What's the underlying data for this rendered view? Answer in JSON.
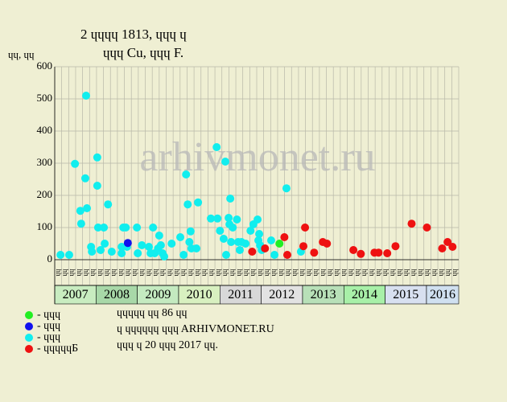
{
  "chart_data": {
    "type": "scatter",
    "title": "2 ɥɥɥɥ 1813, ɥɥɥ ɥ",
    "subtitle": "ɥɥɥ Cu, ɥɥɥ F.",
    "y_label": "ɥɥ, ɥɥ",
    "watermark": "arhivmonet.ru",
    "notes": [
      "ɥɥɥɥɥ ɥɥ 86 ɥɥ",
      "ɥ ɥɥɥɥɥɥ ɥɥɥ ARHIVMONET.RU",
      "ɥɥɥ ɥ 20 ɥɥɥ 2017 ɥɥ."
    ],
    "xlim": [
      2007,
      2016.78
    ],
    "xticks": [
      2007,
      2008,
      2009,
      2010,
      2011,
      2012,
      2013,
      2014,
      2015,
      2016
    ],
    "xtick_colors": [
      "#c8ecc0",
      "#a8d8a8",
      "#c4eac0",
      "#d8f0c0",
      "#d8d8d8",
      "#e2e2e2",
      "#b8e0b8",
      "#a8f0a8",
      "#d8e0f0",
      "#d0e0f0"
    ],
    "period_labels": [
      "ɥɥ",
      "ɥɥ",
      "ɥɥ",
      "ɥɥ",
      "ɥɥ",
      "ɥɥ",
      "ɥɥ",
      "ɥɥ",
      "ɥɥ",
      "ɥɥ",
      "ɥɥ",
      "ɥɥ",
      "ɥɥ",
      "ɥɥ",
      "ɥɥ",
      "ɥɥ",
      "ɥɥ",
      "ɥɥ",
      "ɥɥ",
      "ɥɥ",
      "ɥɥ",
      "ɥɥ",
      "ɥɥ",
      "ɥɥ",
      "ɥɥ",
      "ɥɥ",
      "ɥɥ",
      "ɥɥ",
      "ɥɥ",
      "ɥɥ",
      "ɥɥ",
      "ɥɥ",
      "ɥɥ",
      "ɥɥ",
      "ɥɥ",
      "ɥɥ",
      "ɥɥ",
      "ɥɥ",
      "ɥɥ",
      "ɥɥ",
      "ɥɥ",
      "ɥɥ",
      "ɥɥ",
      "ɥɥ",
      "ɥɥ",
      "ɥɥ",
      "ɥɥ",
      "ɥɥ",
      "ɥɥ",
      "ɥɥ",
      "ɥɥ",
      "ɥɥ",
      "ɥɥ",
      "ɥɥ",
      "ɥɥ",
      "ɥɥ",
      "ɥɥ",
      "ɥɥ"
    ],
    "ylim": [
      0,
      600
    ],
    "yticks": [
      0,
      100,
      200,
      300,
      400,
      500,
      600
    ],
    "grid": true,
    "series": [
      {
        "name": "- ɥɥɥ",
        "color": "#22ee22",
        "x": [
          2012.44
        ],
        "values": [
          50
        ]
      },
      {
        "name": "- ɥɥɥ",
        "color": "#1111ee",
        "x": [
          2008.77
        ],
        "values": [
          52
        ]
      },
      {
        "name": "- ɥɥɥ",
        "color": "#11eeee",
        "x": [
          2007.14,
          2007.35,
          2007.49,
          2007.62,
          2007.64,
          2007.76,
          2007.74,
          2007.78,
          2007.88,
          2007.9,
          2008.03,
          2008.03,
          2008.05,
          2008.11,
          2008.19,
          2008.21,
          2008.29,
          2008.38,
          2008.62,
          2008.62,
          2008.66,
          2008.72,
          2008.75,
          2008.99,
          2009.01,
          2009.11,
          2009.28,
          2009.32,
          2009.38,
          2009.42,
          2009.5,
          2009.53,
          2009.57,
          2009.61,
          2009.65,
          2009.83,
          2010.04,
          2010.12,
          2010.18,
          2010.22,
          2010.26,
          2010.29,
          2010.31,
          2010.43,
          2010.47,
          2010.78,
          2010.92,
          2010.94,
          2011.0,
          2011.09,
          2011.13,
          2011.15,
          2011.21,
          2011.23,
          2011.25,
          2011.27,
          2011.31,
          2011.41,
          2011.44,
          2011.48,
          2011.52,
          2011.62,
          2011.74,
          2011.81,
          2011.91,
          2011.93,
          2011.95,
          2012.01,
          2011.97,
          2012.24,
          2012.32,
          2012.61,
          2012.96
        ],
        "values": [
          15,
          15,
          298,
          152,
          112,
          510,
          253,
          160,
          40,
          25,
          318,
          230,
          100,
          30,
          100,
          50,
          172,
          25,
          40,
          20,
          100,
          100,
          40,
          100,
          20,
          45,
          40,
          20,
          100,
          20,
          35,
          75,
          45,
          20,
          10,
          50,
          70,
          15,
          265,
          172,
          55,
          88,
          35,
          35,
          178,
          128,
          350,
          128,
          90,
          65,
          305,
          15,
          130,
          110,
          190,
          55,
          100,
          125,
          55,
          30,
          55,
          50,
          90,
          110,
          125,
          60,
          80,
          30,
          45,
          60,
          15,
          222,
          25
        ]
      },
      {
        "name": "- ɥɥɥɥɥБ",
        "color": "#ee1111",
        "x": [
          2011.78,
          2012.09,
          2012.56,
          2012.63,
          2013.02,
          2013.06,
          2013.28,
          2013.49,
          2013.59,
          2014.23,
          2014.41,
          2014.74,
          2014.84,
          2015.05,
          2015.25,
          2015.64,
          2016.01,
          2016.38,
          2016.51,
          2016.63
        ],
        "values": [
          25,
          35,
          70,
          15,
          42,
          100,
          22,
          55,
          50,
          30,
          18,
          22,
          22,
          20,
          42,
          112,
          100,
          35,
          55,
          40
        ]
      }
    ]
  }
}
